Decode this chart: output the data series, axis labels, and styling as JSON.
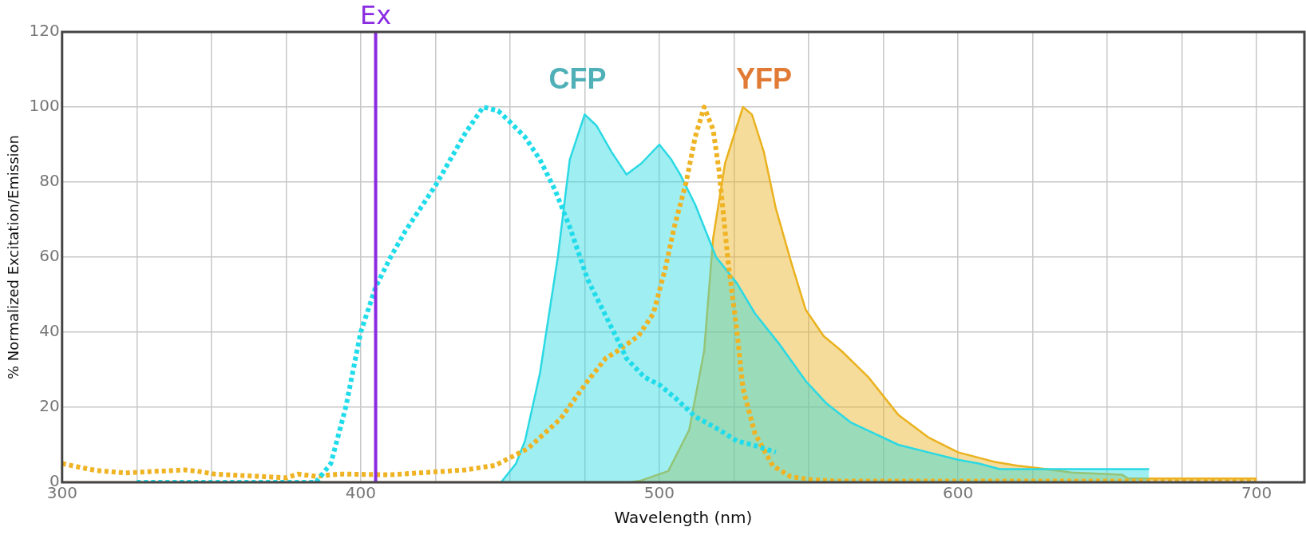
{
  "chart_data": {
    "type": "line",
    "xlabel": "Wavelength (nm)",
    "ylabel": "% Normalized Excitation/Emission",
    "xlim": [
      300,
      716
    ],
    "ylim": [
      0,
      120
    ],
    "xticks": [
      300,
      {
        "value": 325,
        "label": null
      },
      {
        "value": 350,
        "label": null
      },
      {
        "value": 375,
        "label": null
      },
      400,
      {
        "value": 425,
        "label": null
      },
      {
        "value": 450,
        "label": null
      },
      {
        "value": 475,
        "label": null
      },
      500,
      {
        "value": 525,
        "label": null
      },
      {
        "value": 550,
        "label": null
      },
      {
        "value": 575,
        "label": null
      },
      600,
      {
        "value": 625,
        "label": null
      },
      {
        "value": 650,
        "label": null
      },
      {
        "value": 675,
        "label": null
      },
      700
    ],
    "yticks": [
      0,
      20,
      40,
      60,
      80,
      100,
      120
    ],
    "grid": true,
    "legend": false,
    "series": [
      {
        "type": "area",
        "color": "#2ad9e3",
        "line_style": "solid",
        "x": [
          447,
          452,
          455,
          460,
          466,
          470,
          475,
          479,
          484,
          489,
          494,
          500,
          504,
          507,
          512,
          519,
          526,
          532,
          540,
          549,
          556,
          564,
          572,
          580,
          590,
          600,
          607,
          614,
          640,
          664
        ],
        "values": [
          0,
          5,
          11,
          29,
          60,
          86,
          98,
          95,
          88,
          82,
          85,
          90,
          86,
          82,
          74,
          60,
          53,
          45,
          37,
          27,
          21,
          16,
          13,
          10,
          8,
          6,
          5,
          3.5,
          3.5,
          3.5
        ]
      },
      {
        "type": "area",
        "color": "#eab21f",
        "line_style": "solid",
        "x": [
          300,
          490,
          494,
          503,
          510,
          515,
          518,
          522,
          528,
          531,
          535,
          539,
          544,
          549,
          555,
          561,
          570,
          580,
          590,
          600,
          612,
          620,
          627,
          638,
          655,
          657,
          700
        ],
        "values": [
          0,
          0,
          0.5,
          3,
          14,
          35,
          65,
          85,
          100,
          98,
          88,
          73,
          59,
          46,
          39,
          35,
          28,
          18,
          12,
          8,
          5.5,
          4.4,
          3.8,
          2.6,
          2,
          1,
          1
        ]
      },
      {
        "type": "line",
        "color": "#20dcea",
        "line_style": "dotted",
        "x": [
          325,
          385,
          390,
          395,
          400,
          405,
          410,
          415,
          420,
          425,
          430,
          435,
          441,
          446,
          450,
          455,
          460,
          465,
          470,
          476,
          481,
          486,
          489,
          495,
          500,
          506,
          512,
          520,
          526,
          531,
          539
        ],
        "values": [
          0,
          0,
          5,
          20,
          40,
          52,
          60,
          67,
          73,
          79,
          86,
          93,
          100,
          99,
          96,
          92,
          86,
          78,
          68,
          54,
          46,
          38,
          33,
          28,
          26,
          22,
          17.5,
          14,
          11,
          10,
          8
        ]
      },
      {
        "type": "line",
        "color": "#efb323",
        "line_style": "dotted",
        "x": [
          300,
          306,
          311,
          321,
          341,
          345,
          351,
          375,
          379,
          385,
          393,
          410,
          435,
          445,
          456,
          467,
          476,
          482,
          486,
          493,
          498,
          502,
          505,
          509,
          512,
          515,
          518,
          520,
          523,
          526,
          528,
          532,
          538,
          544,
          551,
          560,
          600,
          650,
          700
        ],
        "values": [
          5,
          4,
          3.2,
          2.5,
          3.3,
          3,
          2.2,
          1.2,
          2.2,
          1.6,
          2.2,
          2,
          3.3,
          4.5,
          9,
          17,
          27,
          33,
          35,
          39,
          45,
          57,
          68,
          80,
          92,
          100,
          94,
          83,
          59,
          40,
          25,
          13,
          4.4,
          1.5,
          0.7,
          0.3,
          0.3,
          0.3,
          0.3
        ]
      }
    ],
    "ref_lines": [
      {
        "axis": "x",
        "value": 405,
        "label": "Ex",
        "color": "#8a2be2"
      }
    ],
    "annotations": [
      "CFP",
      "YFP"
    ]
  }
}
